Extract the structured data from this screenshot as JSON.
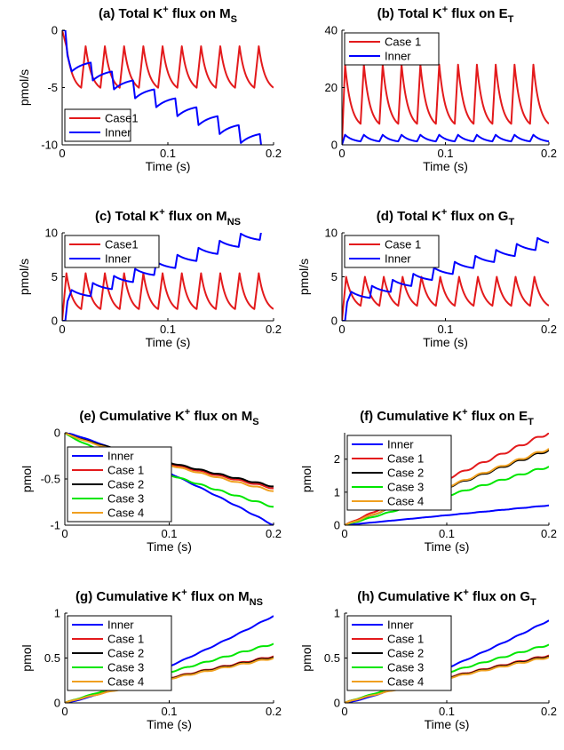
{
  "colors": {
    "case1": "#e31a1c",
    "inner": "#0000ff",
    "case2": "#000000",
    "case3": "#00e600",
    "case4": "#f0a020"
  },
  "chart_data": [
    {
      "id": "a",
      "type": "line",
      "title": {
        "main": "(a) Total K",
        "sup": "+",
        "mid": " flux on M",
        "sub": "S"
      },
      "xlabel": "Time (s)",
      "ylabel": "pmol/s",
      "xlim": [
        0,
        0.2
      ],
      "ylim": [
        -10,
        0
      ],
      "xticks": [
        0,
        0.1,
        0.2
      ],
      "xticklabels": [
        "0",
        "0.1",
        "0.2"
      ],
      "yticks": [
        -10,
        -5,
        0
      ],
      "yticklabels": [
        "-10",
        "-5",
        "0"
      ],
      "legend": {
        "placement": "bottom-left",
        "entries": [
          "Case1",
          "Inner"
        ]
      },
      "series": [
        {
          "name": "Case1",
          "color": "case1",
          "kind": "spike",
          "spike": {
            "n": 11,
            "period": 0.0182,
            "rise": 0.004,
            "start": 0,
            "startVal": 0,
            "base": -5.4,
            "peak": -1.4,
            "tau": 0.006
          }
        },
        {
          "name": "Inner",
          "color": "inner",
          "kind": "stair",
          "stair": {
            "n": 10,
            "period": 0.02,
            "rise": 0.002,
            "start": 0.003,
            "startVal": 0,
            "first": -2.2,
            "drop": -1.4,
            "relax": 1.0,
            "tau": 0.012,
            "step": -0.38
          }
        }
      ]
    },
    {
      "id": "b",
      "type": "line",
      "title": {
        "main": "(b) Total K",
        "sup": "+",
        "mid": " flux on E",
        "sub": "T"
      },
      "xlabel": "Time (s)",
      "ylabel": "",
      "xlim": [
        0,
        0.2
      ],
      "ylim": [
        0,
        40
      ],
      "xticks": [
        0,
        0.1,
        0.2
      ],
      "xticklabels": [
        "0",
        "0.1",
        "0.2"
      ],
      "yticks": [
        0,
        20,
        40
      ],
      "yticklabels": [
        "0",
        "20",
        "40"
      ],
      "legend": {
        "placement": "top-left",
        "entries": [
          "Case 1",
          "Inner"
        ]
      },
      "series": [
        {
          "name": "Case 1",
          "color": "case1",
          "kind": "spike",
          "spike": {
            "n": 11,
            "period": 0.0182,
            "rise": 0.003,
            "start": 0,
            "startVal": 0,
            "base": 5.5,
            "peak": 28,
            "tau": 0.006
          }
        },
        {
          "name": "Inner",
          "color": "inner",
          "kind": "spike",
          "spike": {
            "n": 11,
            "period": 0.0182,
            "rise": 0.003,
            "start": 0,
            "startVal": 0,
            "base": 0.8,
            "peak": 3.5,
            "tau": 0.008
          }
        }
      ]
    },
    {
      "id": "c",
      "type": "line",
      "title": {
        "main": "(c) Total K",
        "sup": "+",
        "mid": " flux on M",
        "sub": "NS"
      },
      "xlabel": "Time (s)",
      "ylabel": "pmol/s",
      "xlim": [
        0,
        0.2
      ],
      "ylim": [
        0,
        10
      ],
      "xticks": [
        0,
        0.1,
        0.2
      ],
      "xticklabels": [
        "0",
        "0.1",
        "0.2"
      ],
      "yticks": [
        0,
        5,
        10
      ],
      "yticklabels": [
        "0",
        "5",
        "10"
      ],
      "legend": {
        "placement": "top-left",
        "entries": [
          "Case1",
          "Inner"
        ]
      },
      "series": [
        {
          "name": "Case1",
          "color": "case1",
          "kind": "spike",
          "spike": {
            "n": 11,
            "period": 0.0182,
            "rise": 0.004,
            "start": 0,
            "startVal": 0,
            "base": 0.9,
            "peak": 5.4,
            "tau": 0.006
          }
        },
        {
          "name": "Inner",
          "color": "inner",
          "kind": "stair",
          "stair": {
            "n": 10,
            "period": 0.02,
            "rise": 0.002,
            "start": 0.003,
            "startVal": 0,
            "first": 2.2,
            "drop": 1.3,
            "relax": -0.9,
            "tau": 0.012,
            "step": 0.4
          }
        }
      ]
    },
    {
      "id": "d",
      "type": "line",
      "title": {
        "main": "(d) Total K",
        "sup": "+",
        "mid": " flux on G",
        "sub": "T"
      },
      "xlabel": "Time (s)",
      "ylabel": "pmol/s",
      "xlim": [
        0,
        0.2
      ],
      "ylim": [
        0,
        10
      ],
      "xticks": [
        0,
        0.1,
        0.2
      ],
      "xticklabels": [
        "0",
        "0.1",
        "0.2"
      ],
      "yticks": [
        0,
        5,
        10
      ],
      "yticklabels": [
        "0",
        "5",
        "10"
      ],
      "legend": {
        "placement": "top-left",
        "entries": [
          "Case 1",
          "Inner"
        ]
      },
      "series": [
        {
          "name": "Case 1",
          "color": "case1",
          "kind": "spike",
          "spike": {
            "n": 11,
            "period": 0.0182,
            "rise": 0.004,
            "start": 0,
            "startVal": 0,
            "base": 1.2,
            "peak": 5.0,
            "tau": 0.007
          }
        },
        {
          "name": "Inner",
          "color": "inner",
          "kind": "stair",
          "stair": {
            "n": 10,
            "period": 0.02,
            "rise": 0.002,
            "start": 0.003,
            "startVal": 0,
            "first": 2.1,
            "drop": 1.2,
            "relax": -0.9,
            "tau": 0.012,
            "step": 0.38
          }
        }
      ]
    },
    {
      "id": "e",
      "type": "line",
      "title": {
        "main": "(e) Cumulative K",
        "sup": "+",
        "mid": " flux on M",
        "sub": "S"
      },
      "xlabel": "Time (s)",
      "ylabel": "pmol",
      "xlim": [
        0,
        0.2
      ],
      "ylim": [
        -1,
        0
      ],
      "xticks": [
        0,
        0.1,
        0.2
      ],
      "xticklabels": [
        "0",
        "0.1",
        "0.2"
      ],
      "yticks": [
        -1,
        -0.5,
        0
      ],
      "yticklabels": [
        "-1",
        "-0.5",
        "0"
      ],
      "legend": {
        "placement": "bottom-left",
        "entries": [
          "Inner",
          "Case 1",
          "Case 2",
          "Case 3",
          "Case 4"
        ]
      },
      "series": [
        {
          "name": "Inner",
          "color": "inner",
          "kind": "ramp",
          "ramp": {
            "end": -1.0,
            "curve": 1.2,
            "wig": 0.004
          }
        },
        {
          "name": "Case 1",
          "color": "case1",
          "kind": "ramp",
          "ramp": {
            "end": -0.6,
            "curve": 0.85,
            "wig": 0.006
          }
        },
        {
          "name": "Case 2",
          "color": "case2",
          "kind": "ramp",
          "ramp": {
            "end": -0.58,
            "curve": 0.85,
            "wig": 0.006
          }
        },
        {
          "name": "Case 3",
          "color": "case3",
          "kind": "ramp",
          "ramp": {
            "end": -0.8,
            "curve": 0.82,
            "wig": 0.007
          }
        },
        {
          "name": "Case 4",
          "color": "case4",
          "kind": "ramp",
          "ramp": {
            "end": -0.63,
            "curve": 0.85,
            "wig": 0.006
          }
        }
      ]
    },
    {
      "id": "f",
      "type": "line",
      "title": {
        "main": "(f) Cumulative K",
        "sup": "+",
        "mid": " flux on E",
        "sub": "T"
      },
      "xlabel": "Time (s)",
      "ylabel": "pmol",
      "xlim": [
        0,
        0.2
      ],
      "ylim": [
        0,
        2.8
      ],
      "xticks": [
        0,
        0.1,
        0.2
      ],
      "xticklabels": [
        "0",
        "0.1",
        "0.2"
      ],
      "yticks": [
        0,
        1,
        2
      ],
      "yticklabels": [
        "0",
        "1",
        "2"
      ],
      "legend": {
        "placement": "top-left",
        "entries": [
          "Inner",
          "Case 1",
          "Case 2",
          "Case 3",
          "Case 4"
        ]
      },
      "series": [
        {
          "name": "Inner",
          "color": "inner",
          "kind": "ramp",
          "ramp": {
            "end": 0.6,
            "curve": 1.0,
            "wig": 0.004
          }
        },
        {
          "name": "Case 1",
          "color": "case1",
          "kind": "ramp",
          "ramp": {
            "end": 2.8,
            "curve": 1.0,
            "wig": 0.035
          }
        },
        {
          "name": "Case 2",
          "color": "case2",
          "kind": "ramp",
          "ramp": {
            "end": 2.28,
            "curve": 1.0,
            "wig": 0.03
          }
        },
        {
          "name": "Case 3",
          "color": "case3",
          "kind": "ramp",
          "ramp": {
            "end": 1.78,
            "curve": 1.0,
            "wig": 0.025
          }
        },
        {
          "name": "Case 4",
          "color": "case4",
          "kind": "ramp",
          "ramp": {
            "end": 2.32,
            "curve": 1.0,
            "wig": 0.03
          }
        }
      ]
    },
    {
      "id": "g",
      "type": "line",
      "title": {
        "main": "(g) Cumulative K",
        "sup": "+",
        "mid": " flux on M",
        "sub": "NS"
      },
      "xlabel": "Time (s)",
      "ylabel": "pmol",
      "xlim": [
        0,
        0.2
      ],
      "ylim": [
        0,
        1
      ],
      "xticks": [
        0,
        0.1,
        0.2
      ],
      "xticklabels": [
        "0",
        "0.1",
        "0.2"
      ],
      "yticks": [
        0,
        0.5,
        1
      ],
      "yticklabels": [
        "0",
        "0.5",
        "1"
      ],
      "legend": {
        "placement": "top-left",
        "entries": [
          "Inner",
          "Case 1",
          "Case 2",
          "Case 3",
          "Case 4"
        ]
      },
      "series": [
        {
          "name": "Inner",
          "color": "inner",
          "kind": "ramp",
          "ramp": {
            "end": 0.97,
            "curve": 1.25,
            "wig": 0.004
          }
        },
        {
          "name": "Case 1",
          "color": "case1",
          "kind": "ramp",
          "ramp": {
            "end": 0.52,
            "curve": 0.9,
            "wig": 0.007
          }
        },
        {
          "name": "Case 2",
          "color": "case2",
          "kind": "ramp",
          "ramp": {
            "end": 0.51,
            "curve": 0.9,
            "wig": 0.007
          }
        },
        {
          "name": "Case 3",
          "color": "case3",
          "kind": "ramp",
          "ramp": {
            "end": 0.66,
            "curve": 0.95,
            "wig": 0.007
          }
        },
        {
          "name": "Case 4",
          "color": "case4",
          "kind": "ramp",
          "ramp": {
            "end": 0.5,
            "curve": 0.9,
            "wig": 0.007
          }
        }
      ]
    },
    {
      "id": "h",
      "type": "line",
      "title": {
        "main": "(h) Cumulative K",
        "sup": "+",
        "mid": " flux on G",
        "sub": "T"
      },
      "xlabel": "Time (s)",
      "ylabel": "pmol",
      "xlim": [
        0,
        0.2
      ],
      "ylim": [
        0,
        1
      ],
      "xticks": [
        0,
        0.1,
        0.2
      ],
      "xticklabels": [
        "0",
        "0.1",
        "0.2"
      ],
      "yticks": [
        0,
        0.5,
        1
      ],
      "yticklabels": [
        "0",
        "0.5",
        "1"
      ],
      "legend": {
        "placement": "top-left",
        "entries": [
          "Inner",
          "Case 1",
          "Case 2",
          "Case 3",
          "Case 4"
        ]
      },
      "series": [
        {
          "name": "Inner",
          "color": "inner",
          "kind": "ramp",
          "ramp": {
            "end": 0.92,
            "curve": 1.25,
            "wig": 0.004
          }
        },
        {
          "name": "Case 1",
          "color": "case1",
          "kind": "ramp",
          "ramp": {
            "end": 0.53,
            "curve": 0.9,
            "wig": 0.007
          }
        },
        {
          "name": "Case 2",
          "color": "case2",
          "kind": "ramp",
          "ramp": {
            "end": 0.52,
            "curve": 0.9,
            "wig": 0.007
          }
        },
        {
          "name": "Case 3",
          "color": "case3",
          "kind": "ramp",
          "ramp": {
            "end": 0.65,
            "curve": 0.95,
            "wig": 0.007
          }
        },
        {
          "name": "Case 4",
          "color": "case4",
          "kind": "ramp",
          "ramp": {
            "end": 0.51,
            "curve": 0.9,
            "wig": 0.007
          }
        }
      ]
    }
  ]
}
